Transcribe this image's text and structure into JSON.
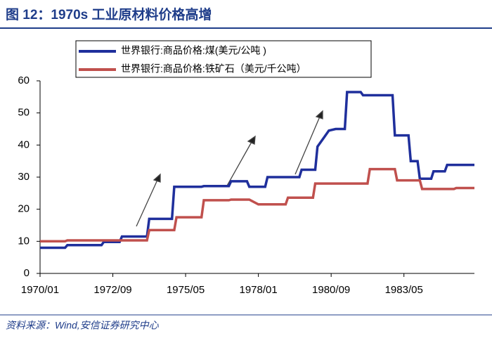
{
  "chart_data": {
    "type": "line",
    "title": "图 12：1970s 工业原材料价格高增",
    "source": "资料来源：Wind,安信证券研究中心",
    "x": [
      "1970/01",
      "1970/12",
      "1971/01",
      "1972/04",
      "1972/05",
      "1972/12",
      "1973/01",
      "1973/12",
      "1974/01",
      "1974/11",
      "1974/12",
      "1975/01",
      "1975/12",
      "1976/01",
      "1976/12",
      "1977/01",
      "1977/08",
      "1977/09",
      "1978/01",
      "1978/04",
      "1978/05",
      "1979/01",
      "1979/02",
      "1979/07",
      "1979/08",
      "1980/01",
      "1980/02",
      "1980/03",
      "1980/06",
      "1980/08",
      "1980/11",
      "1981/03",
      "1981/04",
      "1981/10",
      "1981/11",
      "1982/01",
      "1982/02",
      "1982/12",
      "1983/01",
      "1983/02",
      "1983/07",
      "1983/08",
      "1983/11",
      "1983/12",
      "1984/01",
      "1984/05",
      "1984/06",
      "1984/11",
      "1984/12",
      "1985/03",
      "1985/04",
      "1985/12"
    ],
    "series": [
      {
        "name": "世界银行:商品价格:煤(美元/公吨 )",
        "color": "#1f2f9c",
        "values": [
          8,
          8,
          8.8,
          8.8,
          9.8,
          9.8,
          11.5,
          11.5,
          17,
          17,
          27,
          27,
          27,
          27.2,
          27.2,
          28.7,
          28.7,
          27,
          27,
          27,
          30,
          30,
          30,
          30,
          32.3,
          32.3,
          32.3,
          39.5,
          42.5,
          44.5,
          45,
          45,
          56.5,
          56.5,
          55.5,
          55.5,
          55.5,
          55.5,
          43,
          43,
          43,
          35,
          35,
          29.5,
          29.5,
          29.5,
          31.8,
          31.8,
          33.8,
          33.8,
          33.8,
          33.8
        ]
      },
      {
        "name": "世界银行:商品价格:铁矿石（美元/千公吨）",
        "color": "#c0504d",
        "values": [
          10,
          10,
          10.3,
          10.3,
          10.3,
          10.3,
          10.3,
          10.3,
          13.5,
          13.5,
          13.5,
          17.5,
          17.5,
          22.8,
          22.8,
          23,
          23,
          23,
          21.5,
          21.5,
          21.5,
          21.5,
          23.6,
          23.6,
          23.6,
          23.6,
          28,
          28,
          28,
          28,
          28,
          28,
          28,
          28,
          28,
          28,
          32.5,
          32.5,
          32.5,
          29,
          29,
          29,
          29,
          29,
          26.3,
          26.3,
          26.3,
          26.3,
          26.3,
          26.3,
          26.6,
          26.6
        ]
      }
    ],
    "xlim": [
      "1970/01",
      "1985/12"
    ],
    "xticks": [
      "1970/01",
      "1972/09",
      "1975/05",
      "1978/01",
      "1980/09",
      "1983/05"
    ],
    "ylim": [
      0,
      60
    ],
    "yticks": [
      0,
      10,
      20,
      30,
      40,
      50,
      60
    ],
    "grid": false
  }
}
